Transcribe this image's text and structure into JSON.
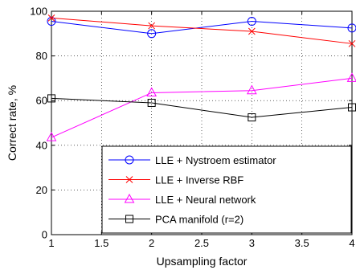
{
  "chart_data": {
    "type": "line",
    "xlabel": "Upsampling factor",
    "ylabel": "Correct rate, %",
    "xlim": [
      1,
      4
    ],
    "ylim": [
      0,
      100
    ],
    "xticks": [
      1,
      1.5,
      2,
      2.5,
      3,
      3.5,
      4
    ],
    "yticks": [
      0,
      20,
      40,
      60,
      80,
      100
    ],
    "xtick_labels": [
      "1",
      "1.5",
      "2",
      "2.5",
      "3",
      "3.5",
      "4"
    ],
    "ytick_labels": [
      "0",
      "20",
      "40",
      "60",
      "80",
      "100"
    ],
    "grid": true,
    "legend_position": "bottom-right",
    "x": [
      1,
      2,
      3,
      4
    ],
    "series": [
      {
        "name": "LLE + Nystroem estimator",
        "values": [
          95.5,
          90,
          95.5,
          92.5
        ],
        "color": "#0000ff",
        "marker": "circle"
      },
      {
        "name": "LLE + Inverse RBF",
        "values": [
          97,
          93.5,
          91,
          85.5
        ],
        "color": "#ff0000",
        "marker": "x"
      },
      {
        "name": "LLE + Neural network",
        "values": [
          43.5,
          63.5,
          64.5,
          70
        ],
        "color": "#ff00ff",
        "marker": "triangle"
      },
      {
        "name": "PCA manifold (r=2)",
        "values": [
          61,
          59,
          52.5,
          57
        ],
        "color": "#000000",
        "marker": "square"
      }
    ]
  }
}
